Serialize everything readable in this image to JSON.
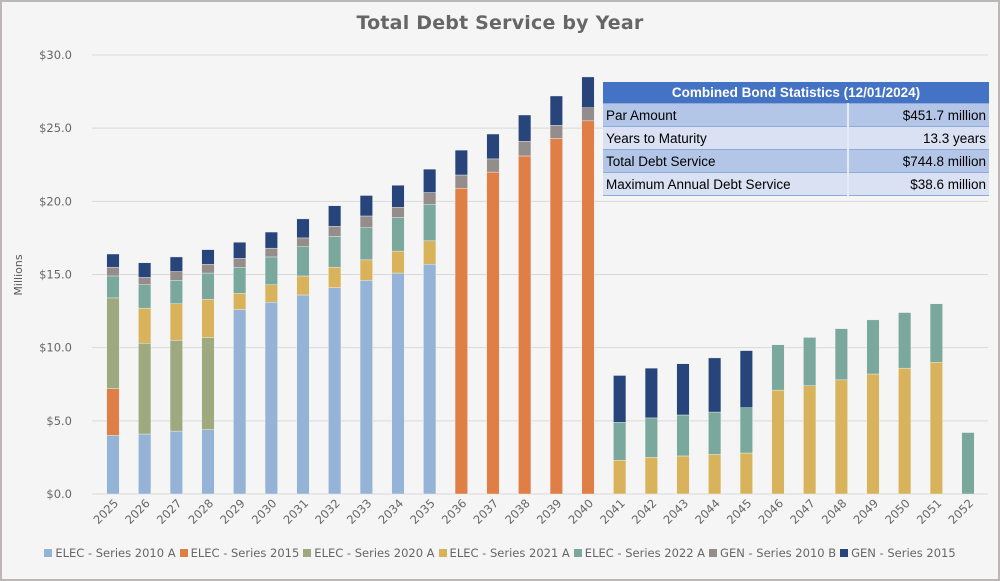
{
  "chart_data": {
    "type": "bar",
    "stacked": true,
    "title": "Total Debt Service by Year",
    "xlabel": "",
    "ylabel": "Millions",
    "ylim": [
      0,
      30
    ],
    "yticks": [
      0,
      5,
      10,
      15,
      20,
      25,
      30
    ],
    "ytick_labels": [
      "$0.0",
      "$5.0",
      "$10.0",
      "$15.0",
      "$20.0",
      "$25.0",
      "$30.0"
    ],
    "grid": true,
    "legend_position": "bottom",
    "categories": [
      "2025",
      "2026",
      "2027",
      "2028",
      "2029",
      "2030",
      "2031",
      "2032",
      "2033",
      "2034",
      "2035",
      "2036",
      "2037",
      "2038",
      "2039",
      "2040",
      "2041",
      "2042",
      "2043",
      "2044",
      "2045",
      "2046",
      "2047",
      "2048",
      "2049",
      "2050",
      "2051",
      "2052"
    ],
    "series": [
      {
        "name": "ELEC - Series 2010 A",
        "color": "#95b3d7",
        "values": [
          4.0,
          4.1,
          4.3,
          4.4,
          12.6,
          13.1,
          13.6,
          14.1,
          14.6,
          15.1,
          15.7,
          0,
          0,
          0,
          0,
          0,
          0,
          0,
          0,
          0,
          0,
          0,
          0,
          0,
          0,
          0,
          0,
          0
        ]
      },
      {
        "name": "ELEC - Series 2015",
        "color": "#e07f45",
        "values": [
          3.2,
          0,
          0,
          0,
          0,
          0,
          0,
          0,
          0,
          0,
          0,
          20.9,
          22.0,
          23.1,
          24.3,
          25.5,
          0,
          0,
          0,
          0,
          0,
          0,
          0,
          0,
          0,
          0,
          0,
          0
        ]
      },
      {
        "name": "ELEC - Series 2020 A",
        "color": "#9ea97f",
        "values": [
          6.2,
          6.2,
          6.2,
          6.3,
          0,
          0,
          0,
          0,
          0,
          0,
          0,
          0,
          0,
          0,
          0,
          0,
          0,
          0,
          0,
          0,
          0,
          0,
          0,
          0,
          0,
          0,
          0,
          0
        ]
      },
      {
        "name": "ELEC - Series 2021 A",
        "color": "#d9b35c",
        "values": [
          0,
          2.4,
          2.5,
          2.6,
          1.1,
          1.2,
          1.3,
          1.4,
          1.4,
          1.5,
          1.6,
          0,
          0,
          0,
          0,
          0,
          2.3,
          2.5,
          2.6,
          2.7,
          2.8,
          7.1,
          7.4,
          7.8,
          8.2,
          8.6,
          9.0,
          0
        ]
      },
      {
        "name": "ELEC - Series 2022 A",
        "color": "#7aa89c",
        "values": [
          1.5,
          1.6,
          1.6,
          1.8,
          1.8,
          1.9,
          2.0,
          2.1,
          2.2,
          2.3,
          2.5,
          0,
          0,
          0,
          0,
          0,
          2.6,
          2.7,
          2.8,
          2.9,
          3.1,
          3.1,
          3.3,
          3.5,
          3.7,
          3.8,
          4.0,
          4.2
        ]
      },
      {
        "name": "GEN - Series 2010 B",
        "color": "#958c8c",
        "values": [
          0.6,
          0.5,
          0.6,
          0.6,
          0.6,
          0.6,
          0.6,
          0.7,
          0.8,
          0.7,
          0.8,
          0.9,
          0.9,
          1.0,
          0.9,
          0.9,
          0,
          0,
          0,
          0,
          0,
          0,
          0,
          0,
          0,
          0,
          0,
          0
        ]
      },
      {
        "name": "GEN - Series 2015",
        "color": "#27457b",
        "values": [
          0.9,
          1.0,
          1.0,
          1.0,
          1.1,
          1.1,
          1.3,
          1.4,
          1.4,
          1.5,
          1.6,
          1.7,
          1.7,
          1.8,
          2.0,
          2.1,
          3.2,
          3.4,
          3.5,
          3.7,
          3.9,
          0,
          0,
          0,
          0,
          0,
          0,
          0
        ]
      }
    ]
  },
  "stats_table": {
    "title": "Combined Bond Statistics (12/01/2024)",
    "rows": [
      {
        "label": "Par Amount",
        "value": "$451.7 million"
      },
      {
        "label": "Years to Maturity",
        "value": "13.3 years"
      },
      {
        "label": "Total Debt Service",
        "value": "$744.8 million"
      },
      {
        "label": "Maximum Annual Debt Service",
        "value": "$38.6 million"
      }
    ]
  }
}
